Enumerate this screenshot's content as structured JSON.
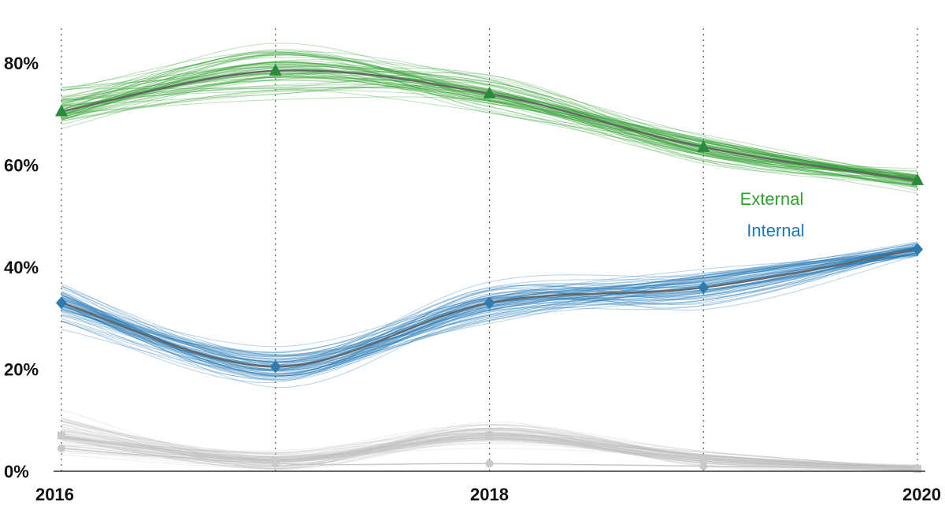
{
  "chart_data": {
    "type": "line",
    "x": [
      2016,
      2017,
      2018,
      2019,
      2020
    ],
    "xticks": [
      2016,
      2018,
      2020
    ],
    "xtick_labels": [
      "2016",
      "2018",
      "2020"
    ],
    "yticks": [
      0,
      20,
      40,
      60,
      80
    ],
    "ytick_labels": [
      "0%",
      "20%",
      "40%",
      "60%",
      "80%"
    ],
    "ylim": [
      0,
      88
    ],
    "xlim": [
      2016,
      2020
    ],
    "grid": "vertical dotted at each year",
    "series": [
      {
        "name": "External",
        "values": [
          70.5,
          78.5,
          74,
          63.5,
          57
        ],
        "color": "#2ca02c",
        "marker": "triangle",
        "label_visible": true
      },
      {
        "name": "Internal",
        "values": [
          33,
          20.5,
          33,
          36,
          43.5
        ],
        "color": "#1f77b4",
        "marker": "diamond",
        "label_visible": true
      },
      {
        "name": "",
        "values": [
          7,
          2,
          7,
          2.5,
          0.5
        ],
        "color": "#bbbbbb",
        "marker": "square",
        "label_visible": false
      },
      {
        "name": "",
        "values": [
          4.5,
          1.5,
          1.5,
          1,
          0.5
        ],
        "color": "#bbbbbb",
        "marker": "circle",
        "label_visible": false
      }
    ],
    "uncertainty_bands": [
      {
        "series": "External",
        "spread": [
          6,
          6,
          5,
          4,
          3
        ]
      },
      {
        "series": "Internal",
        "spread": [
          6,
          5,
          5,
          5,
          2
        ]
      },
      {
        "series": "",
        "spread": [
          6,
          3,
          3,
          2,
          1
        ]
      }
    ]
  }
}
